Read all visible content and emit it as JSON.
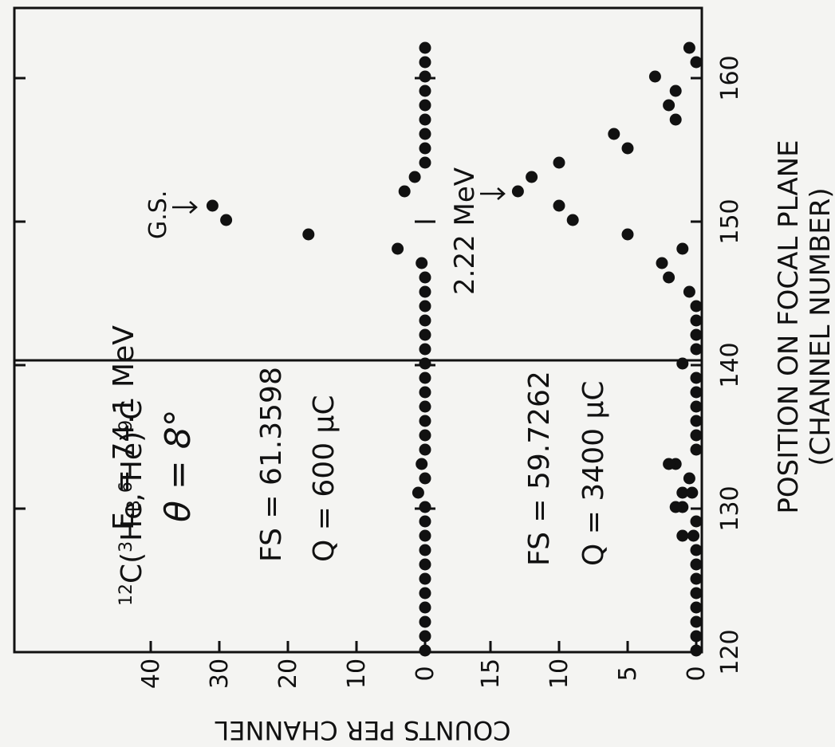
{
  "chart_data": [
    {
      "type": "scatter",
      "reaction_prefix": "12",
      "reaction_core": "C(",
      "projectile_mass": "3",
      "projectile_sym": "He,",
      "ejectile_mass": "6",
      "ejectile_sym": "He)",
      "product_mass": "9",
      "product_sym": "C",
      "beam_energy": "E",
      "beam_sub": "B",
      "beam_energy_value": "= 74.1 MeV",
      "angle": "θ = 8°",
      "fs": "FS = 61.3598",
      "q": "Q = 600 μC",
      "annotation": "G.S.",
      "ylim": [
        0,
        45
      ],
      "yticks": [
        "40",
        "30",
        "20",
        "10",
        "0"
      ],
      "x": [
        120,
        121,
        122,
        123,
        124,
        125,
        126,
        127,
        128,
        129,
        130,
        131,
        132,
        133,
        134,
        135,
        136,
        137,
        138,
        139,
        140,
        141,
        142,
        143,
        144,
        145,
        146,
        147,
        148,
        149,
        150,
        151,
        152,
        153,
        154,
        155,
        156,
        157,
        158,
        159,
        160,
        161,
        162
      ],
      "y": [
        0,
        0,
        0,
        0,
        0,
        0,
        0,
        0,
        0,
        0,
        0,
        1,
        0,
        0.5,
        0,
        0,
        0,
        0,
        0,
        0,
        0,
        0,
        0,
        0,
        0,
        0,
        0,
        0.5,
        4,
        17,
        29,
        31,
        3,
        1.5,
        0,
        0,
        0,
        0,
        0,
        0,
        0,
        0,
        0
      ]
    },
    {
      "type": "scatter",
      "fs": "FS = 59.7262",
      "q": "Q = 3400 μC",
      "annotation": "2.22 MeV",
      "ylim": [
        0,
        19
      ],
      "yticks": [
        "15",
        "10",
        "5",
        "0"
      ],
      "x": [
        120,
        121,
        122,
        123,
        124,
        125,
        126,
        127,
        128,
        128,
        129,
        130,
        130,
        131,
        131,
        132,
        133,
        133,
        134,
        135,
        136,
        137,
        138,
        139,
        140,
        141,
        142,
        143,
        144,
        145,
        146,
        147,
        148,
        149,
        150,
        151,
        152,
        153,
        154,
        155,
        156,
        157,
        158,
        159,
        160,
        161,
        162
      ],
      "y": [
        0,
        0,
        0,
        0,
        0,
        0,
        0,
        0,
        1,
        0.2,
        0,
        1,
        1.5,
        1,
        0.3,
        0.5,
        1.5,
        2,
        0,
        0,
        0,
        0,
        0,
        0,
        1,
        0,
        0,
        0,
        0,
        0.5,
        2,
        2.5,
        1,
        5,
        9,
        10,
        13,
        12,
        10,
        5,
        6,
        1.5,
        2,
        1.5,
        3,
        0,
        0.5
      ]
    }
  ],
  "xaxis": {
    "ticks": [
      "120",
      "130",
      "140",
      "150",
      "160"
    ],
    "xlim": [
      120,
      163
    ],
    "label_line1": "POSITION ON FOCAL PLANE",
    "label_line2": "(CHANNEL NUMBER)"
  },
  "yaxis_label": "COUNTS PER CHANNEL"
}
